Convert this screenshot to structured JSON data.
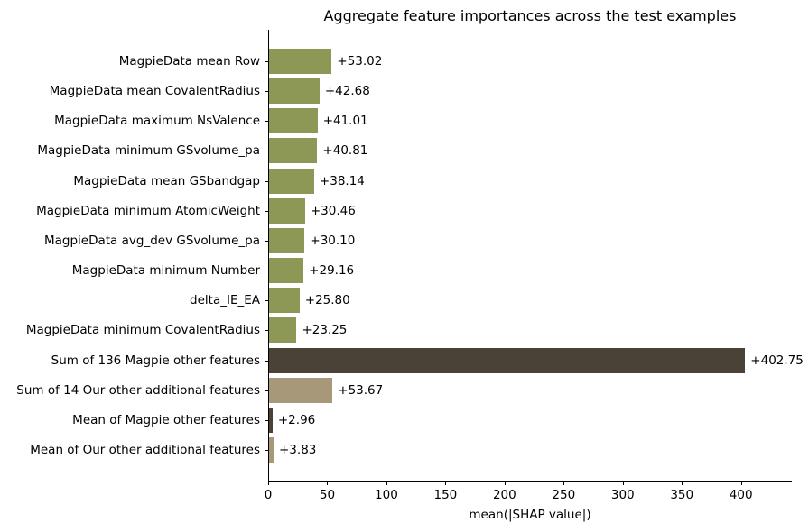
{
  "title": "Aggregate feature importances across the test examples",
  "chart_data": {
    "type": "bar",
    "orientation": "horizontal",
    "title": "Aggregate feature importances across the test examples",
    "xlabel": "mean(|SHAP value|)",
    "ylabel": "",
    "xlim": [
      0,
      443
    ],
    "xticks": [
      0,
      50,
      100,
      150,
      200,
      250,
      300,
      350,
      400
    ],
    "grid": false,
    "legend": null,
    "categories": [
      "MagpieData mean Row",
      "MagpieData mean CovalentRadius",
      "MagpieData maximum NsValence",
      "MagpieData minimum GSvolume_pa",
      "MagpieData mean GSbandgap",
      "MagpieData minimum AtomicWeight",
      "MagpieData avg_dev GSvolume_pa",
      "MagpieData minimum Number",
      "delta_IE_EA",
      "MagpieData minimum CovalentRadius",
      "Sum of 136 Magpie other features",
      "Sum of 14 Our other additional features",
      "Mean of Magpie other features",
      "Mean of Our other additional features"
    ],
    "values": [
      53.02,
      42.68,
      41.01,
      40.81,
      38.14,
      30.46,
      30.1,
      29.16,
      25.8,
      23.25,
      402.75,
      53.67,
      2.96,
      3.83
    ],
    "value_labels": [
      "+53.02",
      "+42.68",
      "+41.01",
      "+40.81",
      "+38.14",
      "+30.46",
      "+30.10",
      "+29.16",
      "+25.80",
      "+23.25",
      "+402.75",
      "+53.67",
      "+2.96",
      "+3.83"
    ],
    "bar_colors": [
      "#8D9857",
      "#8D9857",
      "#8D9857",
      "#8D9857",
      "#8D9857",
      "#8D9857",
      "#8D9857",
      "#8D9857",
      "#8D9857",
      "#8D9857",
      "#4A4236",
      "#A8987A",
      "#4A4236",
      "#A8987A"
    ],
    "colors": {
      "individual_feature": "#8D9857",
      "magpie_group": "#4A4236",
      "additional_group": "#A8987A",
      "axis": "#000000",
      "text": "#000000",
      "background": "#FFFFFF"
    }
  }
}
